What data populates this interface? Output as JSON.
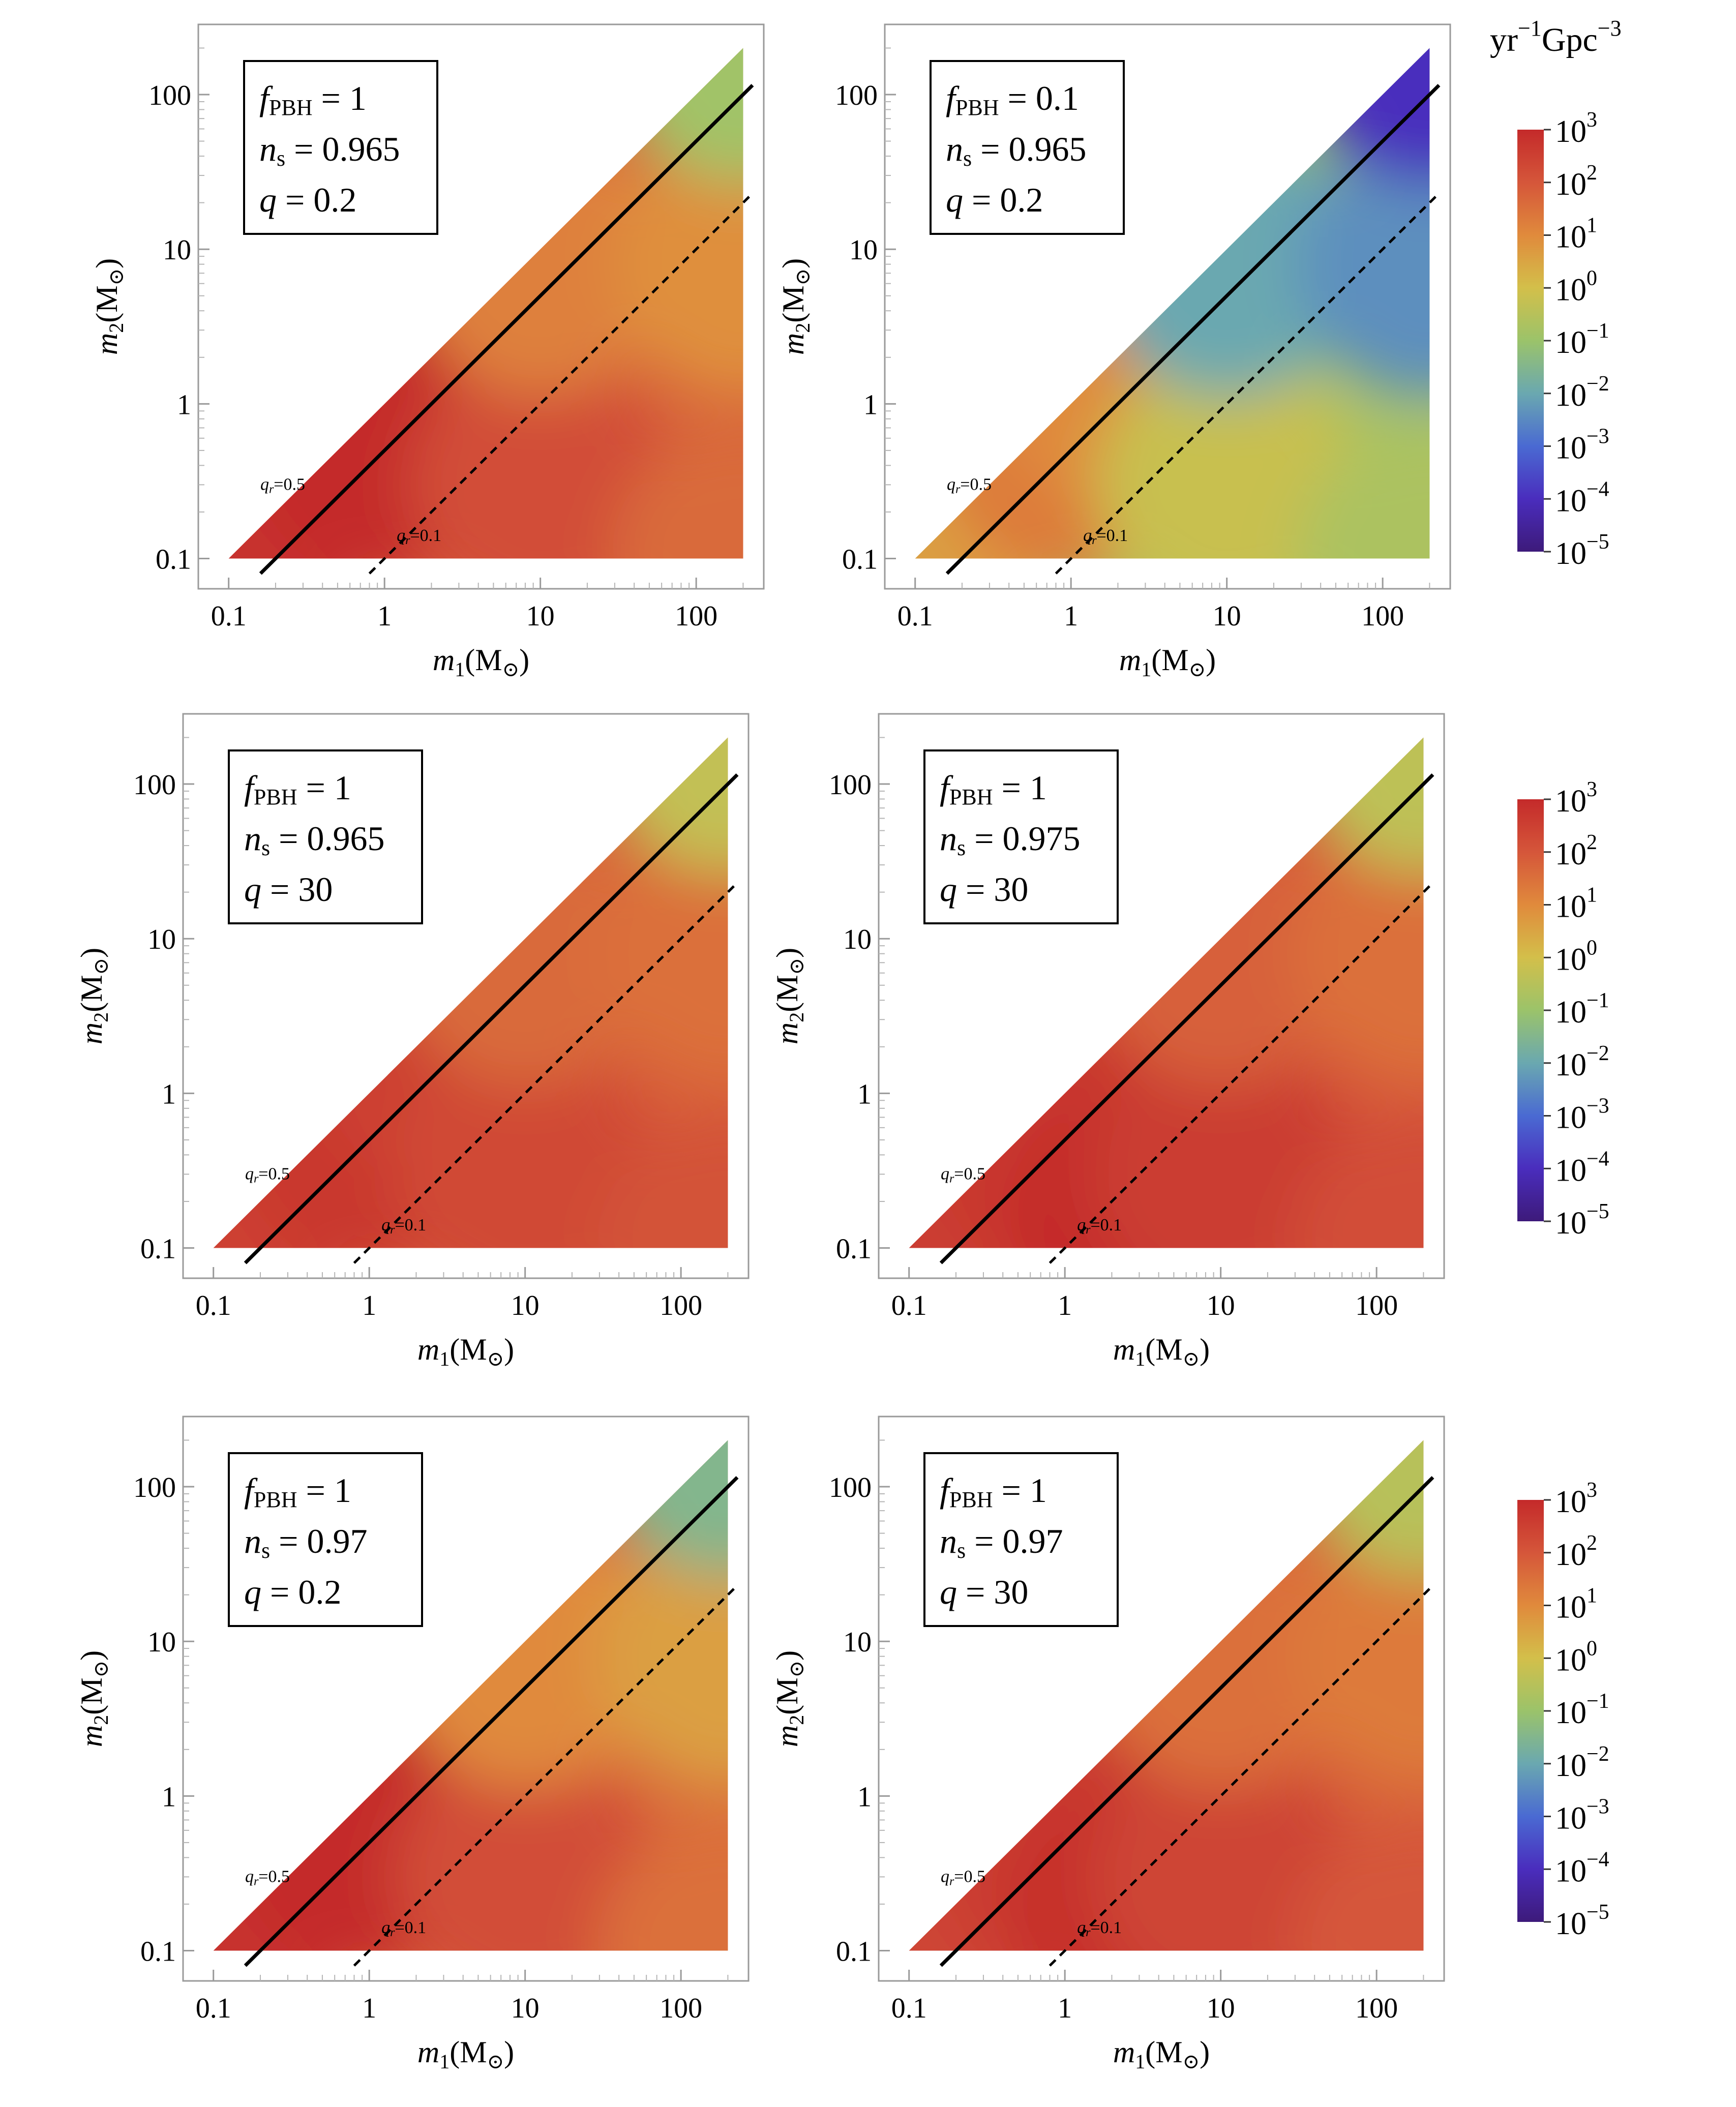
{
  "chart_data": {
    "type": "heatmap",
    "description_units": "merger rate density",
    "colorbar": {
      "unit_label": {
        "base": "yr",
        "sup1": "−1",
        "mid": "Gpc",
        "sup2": "−3"
      },
      "ticks": [
        {
          "base": "10",
          "exp": "3",
          "value": 3
        },
        {
          "base": "10",
          "exp": "2",
          "value": 2
        },
        {
          "base": "10",
          "exp": "1",
          "value": 1
        },
        {
          "base": "10",
          "exp": "0",
          "value": 0
        },
        {
          "base": "10",
          "exp": "−1",
          "value": -1
        },
        {
          "base": "10",
          "exp": "−2",
          "value": -2
        },
        {
          "base": "10",
          "exp": "−3",
          "value": -3
        },
        {
          "base": "10",
          "exp": "−4",
          "value": -4
        },
        {
          "base": "10",
          "exp": "−5",
          "value": -5
        }
      ],
      "range_log10": [
        -5,
        3
      ],
      "colors": [
        "#3d1a7a",
        "#4a2dbd",
        "#4a6ad2",
        "#6aa8b0",
        "#9bc36a",
        "#d3bf4a",
        "#e08a3c",
        "#d5563a",
        "#c42a2a"
      ]
    },
    "xaxis": {
      "label_sym": "m",
      "label_sub": "1",
      "label_unit": "(M",
      "label_sun": "⊙",
      "label_close": ")",
      "scale": "log",
      "range": [
        0.08,
        230
      ],
      "ticks": [
        {
          "value": 0.1,
          "label": "0.1"
        },
        {
          "value": 1,
          "label": "1"
        },
        {
          "value": 10,
          "label": "10"
        },
        {
          "value": 100,
          "label": "100"
        }
      ]
    },
    "yaxis": {
      "label_sym": "m",
      "label_sub": "2",
      "label_unit": "(M",
      "label_sun": "⊙",
      "label_close": ")",
      "scale": "log",
      "range": [
        0.08,
        230
      ],
      "ticks": [
        {
          "value": 0.1,
          "label": "0.1"
        },
        {
          "value": 1,
          "label": "1"
        },
        {
          "value": 10,
          "label": "10"
        },
        {
          "value": 100,
          "label": "100"
        }
      ]
    },
    "reference_lines": [
      {
        "ratio": 0.5,
        "style": "solid",
        "label_sym": "q",
        "label_sub": "r",
        "label_val": "=0.5",
        "label_at": [
          0.2,
          0.3
        ]
      },
      {
        "ratio": 0.1,
        "style": "dashed",
        "label_sym": "q",
        "label_sub": "r",
        "label_val": "=0.1",
        "label_at": [
          1.5,
          0.14
        ]
      }
    ],
    "panels": [
      {
        "f_sym": "f",
        "f_sub": "PBH",
        "f_val": "= 1",
        "n_sym": "n",
        "n_sub": "s",
        "n_val": "= 0.965",
        "q_sym": "q",
        "q_val": "= 0.2",
        "rate_log10_samples": [
          {
            "m1": 0.1,
            "m2": 0.1,
            "v": 2.8
          },
          {
            "m1": 1,
            "m2": 0.5,
            "v": 3.0
          },
          {
            "m1": 2,
            "m2": 1.5,
            "v": 3.0
          },
          {
            "m1": 10,
            "m2": 0.3,
            "v": 2.2
          },
          {
            "m1": 200,
            "m2": 0.1,
            "v": 1.6
          },
          {
            "m1": 10,
            "m2": 8,
            "v": 1.2
          },
          {
            "m1": 200,
            "m2": 8,
            "v": 0.9
          },
          {
            "m1": 200,
            "m2": 190,
            "v": -0.9
          }
        ]
      },
      {
        "f_sym": "f",
        "f_sub": "PBH",
        "f_val": "= 0.1",
        "n_sym": "n",
        "n_sub": "s",
        "n_val": "= 0.965",
        "q_sym": "q",
        "q_val": "= 0.2",
        "rate_log10_samples": [
          {
            "m1": 0.1,
            "m2": 0.1,
            "v": 0.6
          },
          {
            "m1": 1,
            "m2": 0.5,
            "v": 1.3
          },
          {
            "m1": 2,
            "m2": 1.5,
            "v": 1.0
          },
          {
            "m1": 10,
            "m2": 0.3,
            "v": -0.2
          },
          {
            "m1": 200,
            "m2": 0.1,
            "v": -0.7
          },
          {
            "m1": 10,
            "m2": 8,
            "v": -2.0
          },
          {
            "m1": 200,
            "m2": 8,
            "v": -2.4
          },
          {
            "m1": 200,
            "m2": 190,
            "v": -4.0
          }
        ]
      },
      {
        "f_sym": "f",
        "f_sub": "PBH",
        "f_val": "= 1",
        "n_sym": "n",
        "n_sub": "s",
        "n_val": "= 0.965",
        "q_sym": "q",
        "q_val": "= 30",
        "rate_log10_samples": [
          {
            "m1": 0.1,
            "m2": 0.1,
            "v": 2.5
          },
          {
            "m1": 1,
            "m2": 0.5,
            "v": 2.7
          },
          {
            "m1": 3,
            "m2": 2,
            "v": 2.5
          },
          {
            "m1": 10,
            "m2": 0.3,
            "v": 2.3
          },
          {
            "m1": 200,
            "m2": 0.1,
            "v": 2.1
          },
          {
            "m1": 10,
            "m2": 8,
            "v": 1.6
          },
          {
            "m1": 200,
            "m2": 8,
            "v": 1.5
          },
          {
            "m1": 200,
            "m2": 190,
            "v": -0.3
          }
        ]
      },
      {
        "f_sym": "f",
        "f_sub": "PBH",
        "f_val": "= 1",
        "n_sym": "n",
        "n_sub": "s",
        "n_val": "= 0.975",
        "q_sym": "q",
        "q_val": "= 30",
        "rate_log10_samples": [
          {
            "m1": 0.1,
            "m2": 0.1,
            "v": 2.6
          },
          {
            "m1": 1,
            "m2": 0.5,
            "v": 2.7
          },
          {
            "m1": 3,
            "m2": 0.15,
            "v": 3.0
          },
          {
            "m1": 10,
            "m2": 0.3,
            "v": 2.6
          },
          {
            "m1": 200,
            "m2": 0.1,
            "v": 2.2
          },
          {
            "m1": 10,
            "m2": 8,
            "v": 1.8
          },
          {
            "m1": 200,
            "m2": 8,
            "v": 1.5
          },
          {
            "m1": 200,
            "m2": 190,
            "v": -0.4
          }
        ]
      },
      {
        "f_sym": "f",
        "f_sub": "PBH",
        "f_val": "= 1",
        "n_sym": "n",
        "n_sub": "s",
        "n_val": "= 0.97",
        "q_sym": "q",
        "q_val": "= 0.2",
        "rate_log10_samples": [
          {
            "m1": 0.1,
            "m2": 0.1,
            "v": 2.8
          },
          {
            "m1": 1,
            "m2": 0.5,
            "v": 3.0
          },
          {
            "m1": 2,
            "m2": 1.5,
            "v": 3.0
          },
          {
            "m1": 10,
            "m2": 0.3,
            "v": 2.2
          },
          {
            "m1": 200,
            "m2": 0.1,
            "v": 1.5
          },
          {
            "m1": 10,
            "m2": 8,
            "v": 1.0
          },
          {
            "m1": 200,
            "m2": 8,
            "v": 0.6
          },
          {
            "m1": 200,
            "m2": 190,
            "v": -1.5
          }
        ]
      },
      {
        "f_sym": "f",
        "f_sub": "PBH",
        "f_val": "= 1",
        "n_sym": "n",
        "n_sub": "s",
        "n_val": "= 0.97",
        "q_sym": "q",
        "q_val": "= 30",
        "rate_log10_samples": [
          {
            "m1": 0.1,
            "m2": 0.1,
            "v": 2.4
          },
          {
            "m1": 1,
            "m2": 0.5,
            "v": 2.6
          },
          {
            "m1": 3,
            "m2": 0.2,
            "v": 2.9
          },
          {
            "m1": 10,
            "m2": 0.3,
            "v": 2.4
          },
          {
            "m1": 200,
            "m2": 0.1,
            "v": 2.0
          },
          {
            "m1": 10,
            "m2": 8,
            "v": 1.5
          },
          {
            "m1": 200,
            "m2": 8,
            "v": 1.3
          },
          {
            "m1": 200,
            "m2": 190,
            "v": -0.5
          }
        ]
      }
    ]
  }
}
